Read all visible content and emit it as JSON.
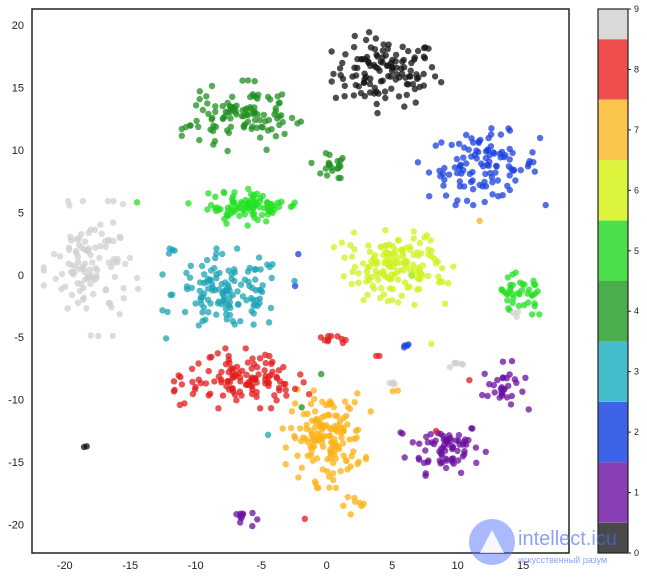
{
  "chart_data": {
    "type": "scatter",
    "title": "",
    "xlabel": "",
    "ylabel": "",
    "xlim": [
      -22.5,
      18.5
    ],
    "ylim": [
      -22.3,
      21.3
    ],
    "x_ticks": [
      -20,
      -15,
      -10,
      -5,
      0,
      5,
      10,
      15
    ],
    "y_ticks": [
      -20,
      -15,
      -10,
      -5,
      0,
      5,
      10,
      15,
      20
    ],
    "grid": false,
    "colorbar": {
      "labels": [
        "0",
        "1",
        "2",
        "3",
        "4",
        "5",
        "6",
        "7",
        "8",
        "9"
      ],
      "colors": [
        "#4a4a4a",
        "#8a3fb5",
        "#3f63e6",
        "#45bccc",
        "#4aae4c",
        "#4be04b",
        "#dcf43c",
        "#fbc54c",
        "#ef4f4f",
        "#d9d9d9"
      ]
    },
    "series": [
      {
        "label": "0",
        "color": "#111111",
        "clusters": [
          {
            "cx": 4.5,
            "cy": 16.2,
            "rx": 4.0,
            "ry": 2.7,
            "n": 120
          },
          {
            "cx": -18.5,
            "cy": -14.0,
            "rx": 0.3,
            "ry": 0.4,
            "n": 2
          }
        ]
      },
      {
        "label": "1",
        "color": "#6a0d9e",
        "clusters": [
          {
            "cx": 9.0,
            "cy": -13.8,
            "rx": 2.8,
            "ry": 2.0,
            "n": 70
          },
          {
            "cx": 13.5,
            "cy": -9.0,
            "rx": 1.6,
            "ry": 1.8,
            "n": 30
          },
          {
            "cx": -6.5,
            "cy": -19.5,
            "rx": 1.0,
            "ry": 0.8,
            "n": 10
          }
        ]
      },
      {
        "label": "2",
        "color": "#1a3fe0",
        "clusters": [
          {
            "cx": 12.0,
            "cy": 8.7,
            "rx": 4.2,
            "ry": 2.6,
            "n": 110
          },
          {
            "cx": 6.0,
            "cy": -5.6,
            "rx": 0.4,
            "ry": 0.4,
            "n": 4
          },
          {
            "cx": -2.3,
            "cy": 1.5,
            "rx": 0.2,
            "ry": 0.2,
            "n": 1
          },
          {
            "cx": -2.5,
            "cy": -1.0,
            "rx": 0.2,
            "ry": 0.2,
            "n": 1
          }
        ]
      },
      {
        "label": "3",
        "color": "#1aa3b5",
        "clusters": [
          {
            "cx": -7.5,
            "cy": -1.5,
            "rx": 4.2,
            "ry": 3.0,
            "n": 130
          },
          {
            "cx": -12.0,
            "cy": 2.0,
            "rx": 0.6,
            "ry": 0.4,
            "n": 4
          },
          {
            "cx": -4.5,
            "cy": -13.0,
            "rx": 0.2,
            "ry": 0.2,
            "n": 1
          }
        ]
      },
      {
        "label": "4",
        "color": "#1f8f1f",
        "clusters": [
          {
            "cx": -6.5,
            "cy": 12.7,
            "rx": 3.8,
            "ry": 2.4,
            "n": 110
          },
          {
            "cx": 0.2,
            "cy": 8.8,
            "rx": 1.5,
            "ry": 1.0,
            "n": 20
          },
          {
            "cx": -0.6,
            "cy": -8.1,
            "rx": 0.2,
            "ry": 0.2,
            "n": 1
          },
          {
            "cx": -2.0,
            "cy": -10.7,
            "rx": 0.2,
            "ry": 0.2,
            "n": 1
          }
        ]
      },
      {
        "label": "5",
        "color": "#22e022",
        "clusters": [
          {
            "cx": -6.0,
            "cy": 5.5,
            "rx": 3.8,
            "ry": 1.3,
            "n": 90
          },
          {
            "cx": 15.0,
            "cy": -1.5,
            "rx": 1.7,
            "ry": 1.4,
            "n": 40
          },
          {
            "cx": -14.5,
            "cy": 6.0,
            "rx": 0.2,
            "ry": 0.2,
            "n": 1
          },
          {
            "cx": 6.5,
            "cy": 0.0,
            "rx": 0.2,
            "ry": 0.2,
            "n": 1
          }
        ]
      },
      {
        "label": "6",
        "color": "#cff21c",
        "clusters": [
          {
            "cx": 5.0,
            "cy": 0.5,
            "rx": 4.0,
            "ry": 2.6,
            "n": 150
          },
          {
            "cx": 8.0,
            "cy": -5.6,
            "rx": 0.2,
            "ry": 0.2,
            "n": 1
          }
        ]
      },
      {
        "label": "7",
        "color": "#fcb215",
        "clusters": [
          {
            "cx": 0.0,
            "cy": -13.0,
            "rx": 2.8,
            "ry": 3.4,
            "n": 150
          },
          {
            "cx": 2.5,
            "cy": -18.5,
            "rx": 1.5,
            "ry": 1.0,
            "n": 8
          },
          {
            "cx": 5.2,
            "cy": -9.3,
            "rx": 0.3,
            "ry": 0.3,
            "n": 2
          },
          {
            "cx": 11.5,
            "cy": 4.5,
            "rx": 0.2,
            "ry": 0.2,
            "n": 1
          }
        ]
      },
      {
        "label": "8",
        "color": "#e31a1a",
        "clusters": [
          {
            "cx": -6.5,
            "cy": -8.3,
            "rx": 4.3,
            "ry": 2.0,
            "n": 120
          },
          {
            "cx": 0.5,
            "cy": -5.2,
            "rx": 1.3,
            "ry": 0.5,
            "n": 10
          },
          {
            "cx": 4.0,
            "cy": -6.7,
            "rx": 0.3,
            "ry": 0.2,
            "n": 2
          },
          {
            "cx": -1.5,
            "cy": -19.5,
            "rx": 0.2,
            "ry": 0.2,
            "n": 1
          },
          {
            "cx": 8.5,
            "cy": -12.5,
            "rx": 0.2,
            "ry": 0.2,
            "n": 1
          },
          {
            "cx": 11.0,
            "cy": -8.5,
            "rx": 0.2,
            "ry": 0.2,
            "n": 1
          }
        ]
      },
      {
        "label": "9",
        "color": "#d0d0d0",
        "clusters": [
          {
            "cx": -18.0,
            "cy": 0.5,
            "rx": 3.0,
            "ry": 4.5,
            "n": 110
          },
          {
            "cx": 10.0,
            "cy": -7.2,
            "rx": 1.0,
            "ry": 0.3,
            "n": 6
          },
          {
            "cx": 5.0,
            "cy": -8.8,
            "rx": 0.5,
            "ry": 0.3,
            "n": 4
          },
          {
            "cx": 14.5,
            "cy": -3.2,
            "rx": 0.4,
            "ry": 0.3,
            "n": 3
          }
        ]
      }
    ]
  },
  "watermark": {
    "name": "intellect.icu",
    "tagline": "искусственный разум"
  }
}
